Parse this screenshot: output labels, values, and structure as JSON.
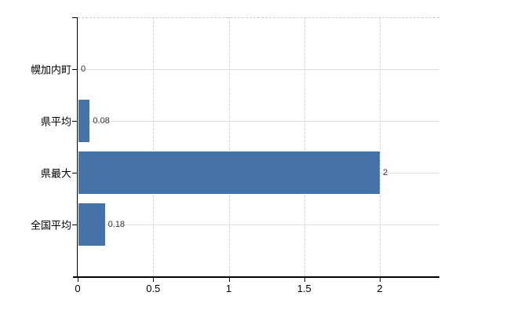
{
  "chart_data": {
    "type": "bar",
    "orientation": "horizontal",
    "title": "",
    "categories": [
      "幌加内町",
      "県平均",
      "県最大",
      "全国平均"
    ],
    "values": [
      0,
      0.08,
      2,
      0.18
    ],
    "value_labels": [
      "0",
      "0.08",
      "2",
      "0.18"
    ],
    "x_ticks": [
      0,
      0.5,
      1,
      1.5,
      2
    ],
    "x_tick_labels": [
      "0",
      "0.5",
      "1",
      "1.5",
      "2"
    ],
    "xlim": [
      0,
      2.4
    ],
    "xlabel": "",
    "ylabel": "",
    "grid": true,
    "legend": false,
    "colors": {
      "bar": "#4572a7",
      "axis": "#000000",
      "gridline_horizontal": "#dce0dc",
      "gridline_vertical": "#d4d4d4",
      "plot_top_border": "#cccccc",
      "value_label": "#333333",
      "background": "#ffffff"
    }
  }
}
